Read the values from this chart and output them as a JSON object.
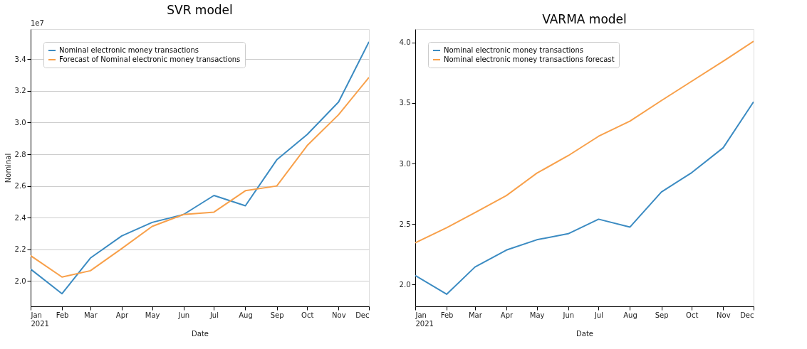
{
  "chart_data": [
    {
      "type": "line",
      "title": "SVR model",
      "xlabel": "Date",
      "ylabel": "Nominal",
      "annotations": [
        "1e7"
      ],
      "x": [
        "2021-01",
        "2021-02",
        "2021-03",
        "2021-04",
        "2021-05",
        "2021-06",
        "2021-07",
        "2021-08",
        "2021-09",
        "2021-10",
        "2021-11",
        "2021-12"
      ],
      "xlim": [
        "2021-01",
        "2021-12"
      ],
      "xticks": [
        {
          "value": "2021-01",
          "label": "Jan\n2021"
        },
        {
          "value": "2021-02",
          "label": "Feb"
        },
        {
          "value": "2021-03",
          "label": "Mar"
        },
        {
          "value": "2021-04",
          "label": "Apr"
        },
        {
          "value": "2021-05",
          "label": "May"
        },
        {
          "value": "2021-06",
          "label": "Jun"
        },
        {
          "value": "2021-07",
          "label": "Jul"
        },
        {
          "value": "2021-08",
          "label": "Aug"
        },
        {
          "value": "2021-09",
          "label": "Sep"
        },
        {
          "value": "2021-10",
          "label": "Oct"
        },
        {
          "value": "2021-11",
          "label": "Nov"
        },
        {
          "value": "2021-12",
          "label": "Dec"
        }
      ],
      "series": [
        {
          "name": "Nominal electronic money transactions",
          "color": "#3b8bc2",
          "values": [
            2.075,
            1.92,
            2.145,
            2.285,
            2.37,
            2.42,
            2.54,
            2.475,
            2.765,
            2.925,
            3.13,
            3.51
          ]
        },
        {
          "name": "Forecast of Nominal electronic money transactions",
          "color": "#f8a04a",
          "values": [
            2.16,
            2.025,
            2.065,
            2.205,
            2.345,
            2.42,
            2.435,
            2.57,
            2.6,
            2.855,
            3.05,
            3.285
          ]
        }
      ],
      "ylim": [
        1.84,
        3.59
      ],
      "yticks": [
        {
          "value": 2,
          "label": "2.0"
        },
        2.2,
        2.4,
        2.6,
        2.8,
        {
          "value": 3,
          "label": "3.0"
        },
        3.2,
        3.4
      ],
      "grid": "y",
      "legend": "top left",
      "marker": "none",
      "line_style": "solid"
    },
    {
      "type": "line",
      "title": "VARMA model",
      "xlabel": "Date",
      "x": [
        "2021-01",
        "2021-02",
        "2021-03",
        "2021-04",
        "2021-05",
        "2021-06",
        "2021-07",
        "2021-08",
        "2021-09",
        "2021-10",
        "2021-11",
        "2021-12"
      ],
      "xlim": [
        "2021-01",
        "2021-12"
      ],
      "xticks": [
        {
          "value": "2021-01",
          "label": "Jan\n2021"
        },
        {
          "value": "2021-02",
          "label": "Feb"
        },
        {
          "value": "2021-03",
          "label": "Mar"
        },
        {
          "value": "2021-04",
          "label": "Apr"
        },
        {
          "value": "2021-05",
          "label": "May"
        },
        {
          "value": "2021-06",
          "label": "Jun"
        },
        {
          "value": "2021-07",
          "label": "Jul"
        },
        {
          "value": "2021-08",
          "label": "Aug"
        },
        {
          "value": "2021-09",
          "label": "Sep"
        },
        {
          "value": "2021-10",
          "label": "Oct"
        },
        {
          "value": "2021-11",
          "label": "Nov"
        },
        {
          "value": "2021-12",
          "label": "Dec"
        }
      ],
      "series": [
        {
          "name": "Nominal electronic money transactions",
          "color": "#3b8bc2",
          "values": [
            2.075,
            1.92,
            2.145,
            2.285,
            2.37,
            2.42,
            2.54,
            2.475,
            2.765,
            2.925,
            3.13,
            3.51
          ]
        },
        {
          "name": "Nominal electronic money transactions forecast",
          "color": "#f8a04a",
          "values": [
            2.345,
            2.47,
            2.595,
            2.735,
            2.92,
            3.065,
            3.225,
            3.35,
            3.52,
            3.68,
            3.845,
            4.01
          ]
        }
      ],
      "ylim": [
        1.82,
        4.11
      ],
      "yticks": [
        {
          "value": 2,
          "label": "2.0"
        },
        2.5,
        {
          "value": 3,
          "label": "3.0"
        },
        3.5,
        {
          "value": 4,
          "label": "4.0"
        }
      ],
      "grid": false,
      "legend": "top left",
      "marker": "none",
      "line_style": "solid"
    }
  ]
}
